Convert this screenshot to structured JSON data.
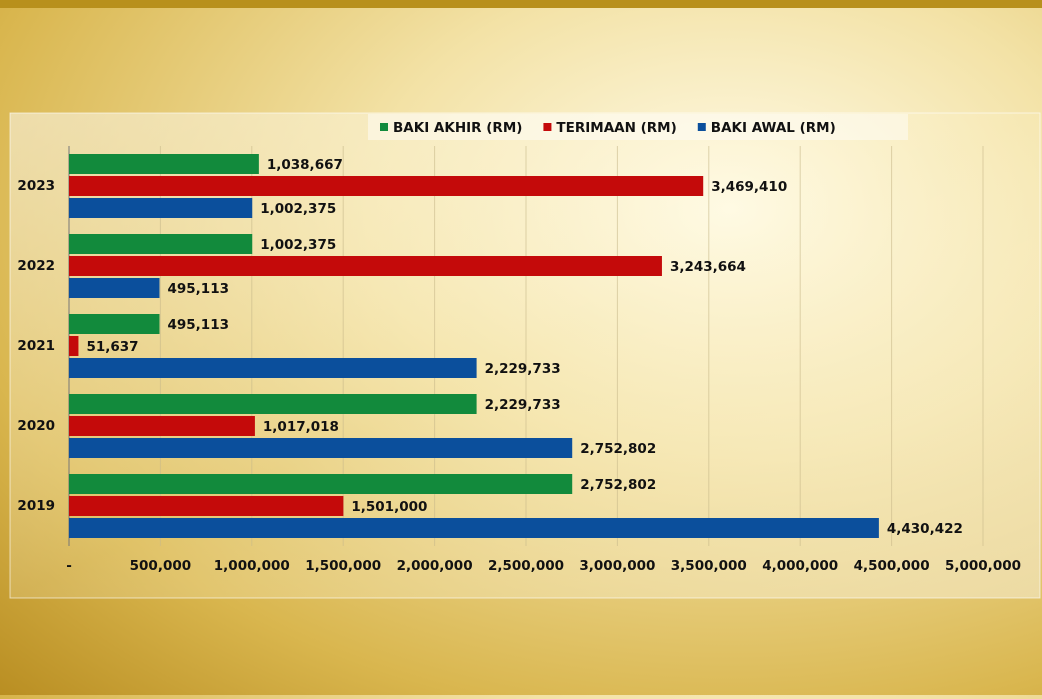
{
  "chart_data": {
    "type": "hbar",
    "categories": [
      "2023",
      "2022",
      "2021",
      "2020",
      "2019"
    ],
    "series": [
      {
        "name": "BAKI AKHIR (RM)",
        "color": "#128a3c",
        "values": [
          1038667,
          1002375,
          495113,
          2229733,
          2752802
        ],
        "value_labels": [
          "1,038,667",
          "1,002,375",
          "495,113",
          "2,229,733",
          "2,752,802"
        ]
      },
      {
        "name": "TERIMAAN (RM)",
        "color": "#c40a0a",
        "values": [
          3469410,
          3243664,
          51637,
          1017018,
          1501000
        ],
        "value_labels": [
          "3,469,410",
          "3,243,664",
          "51,637",
          "1,017,018",
          "1,501,000"
        ]
      },
      {
        "name": "BAKI AWAL (RM)",
        "color": "#0b4f9c",
        "values": [
          1002375,
          495113,
          2229733,
          2752802,
          4430422
        ],
        "value_labels": [
          "1,002,375",
          "495,113",
          "2,229,733",
          "2,752,802",
          "4,430,422"
        ]
      }
    ],
    "xlim": [
      0,
      5000000
    ],
    "xticks": [
      {
        "value": 0,
        "label": "-"
      },
      {
        "value": 500000,
        "label": "500,000"
      },
      {
        "value": 1000000,
        "label": "1,000,000"
      },
      {
        "value": 1500000,
        "label": "1,500,000"
      },
      {
        "value": 2000000,
        "label": "2,000,000"
      },
      {
        "value": 2500000,
        "label": "2,500,000"
      },
      {
        "value": 3000000,
        "label": "3,000,000"
      },
      {
        "value": 3500000,
        "label": "3,500,000"
      },
      {
        "value": 4000000,
        "label": "4,000,000"
      },
      {
        "value": 4500000,
        "label": "4,500,000"
      },
      {
        "value": 5000000,
        "label": "5,000,000"
      }
    ],
    "grid": true,
    "legend": "top"
  }
}
